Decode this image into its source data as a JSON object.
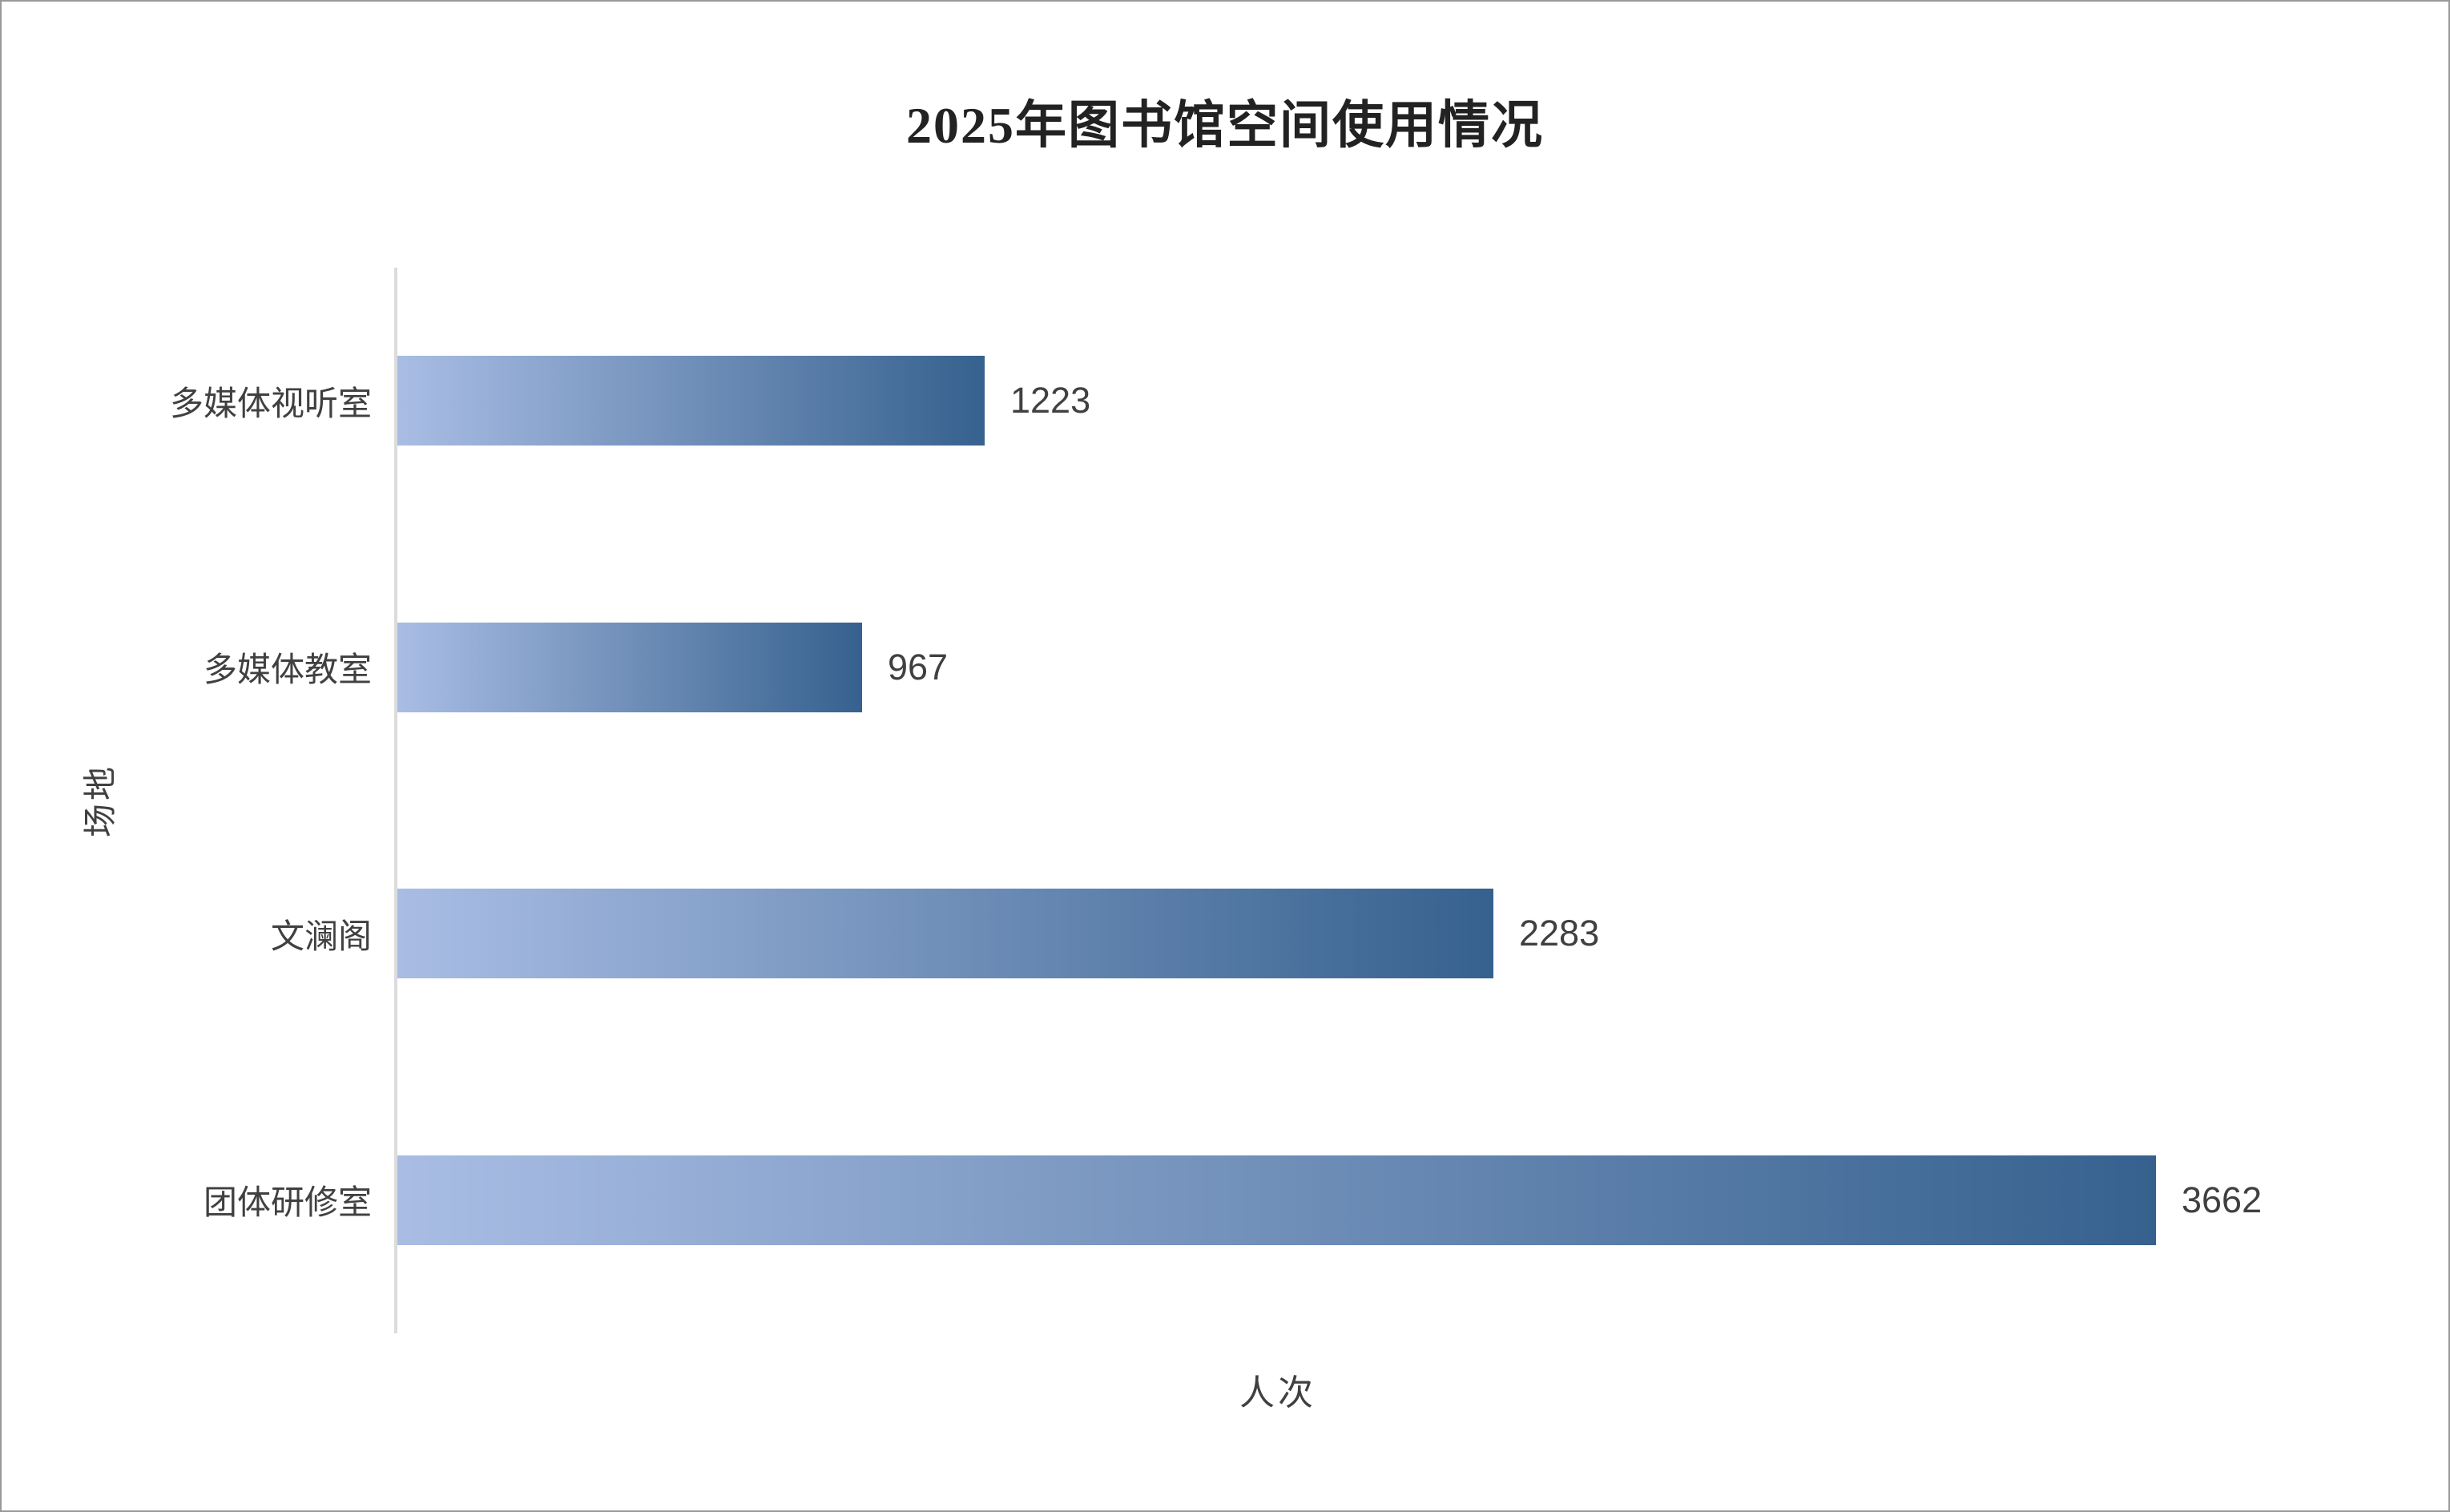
{
  "page": {
    "background_color": "#ffffff",
    "border_color": "#999999"
  },
  "chart_data": {
    "type": "bar",
    "orientation": "horizontal",
    "title": "2025年图书馆空间使用情况",
    "xlabel": "人次",
    "ylabel": "场地",
    "categories": [
      "多媒体视听室",
      "多媒体教室",
      "文澜阁",
      "团体研修室"
    ],
    "values": [
      1223,
      967,
      2283,
      3662
    ],
    "xlim": [
      0,
      4000
    ],
    "grid": false,
    "legend": "none",
    "value_labels_shown": true,
    "bar_gradient_start": "#a9bde4",
    "bar_gradient_end": "#36618e",
    "axis_line_color": "#dcdcdc",
    "label_color": "#404040",
    "title_color": "#222222"
  }
}
